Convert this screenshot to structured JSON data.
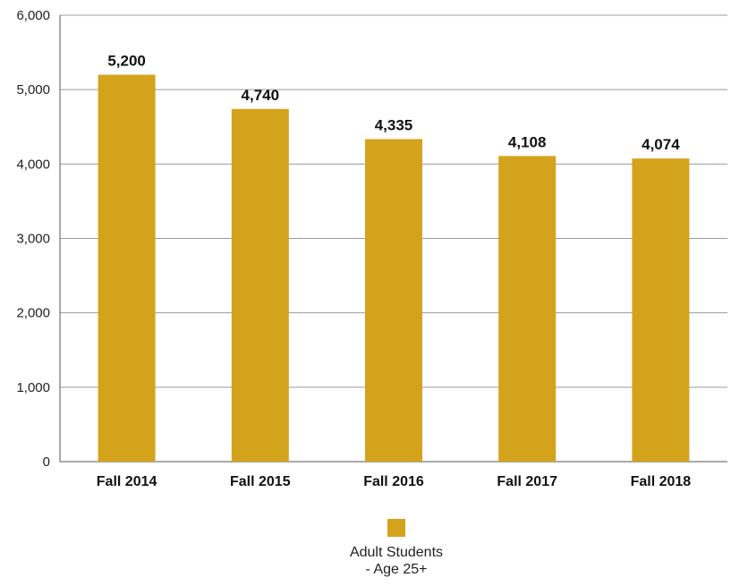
{
  "chart_data": {
    "type": "bar",
    "categories": [
      "Fall 2014",
      "Fall 2015",
      "Fall 2016",
      "Fall 2017",
      "Fall 2018"
    ],
    "series": [
      {
        "name": "Adult Students - Age 25+",
        "values": [
          5200,
          4740,
          4335,
          4108,
          4074
        ]
      }
    ],
    "data_labels": [
      "5,200",
      "4,740",
      "4,335",
      "4,108",
      "4,074"
    ],
    "yticks": [
      0,
      1000,
      2000,
      3000,
      4000,
      5000,
      6000
    ],
    "ytick_labels": [
      "0",
      "1,000",
      "2,000",
      "3,000",
      "4,000",
      "5,000",
      "6,000"
    ],
    "ylim": [
      0,
      6000
    ],
    "grid": true,
    "legend_position": "bottom",
    "bar_color": "#d4a31c",
    "title": "",
    "xlabel": "",
    "ylabel": ""
  },
  "legend": {
    "label": "Adult Students - Age 25+"
  }
}
